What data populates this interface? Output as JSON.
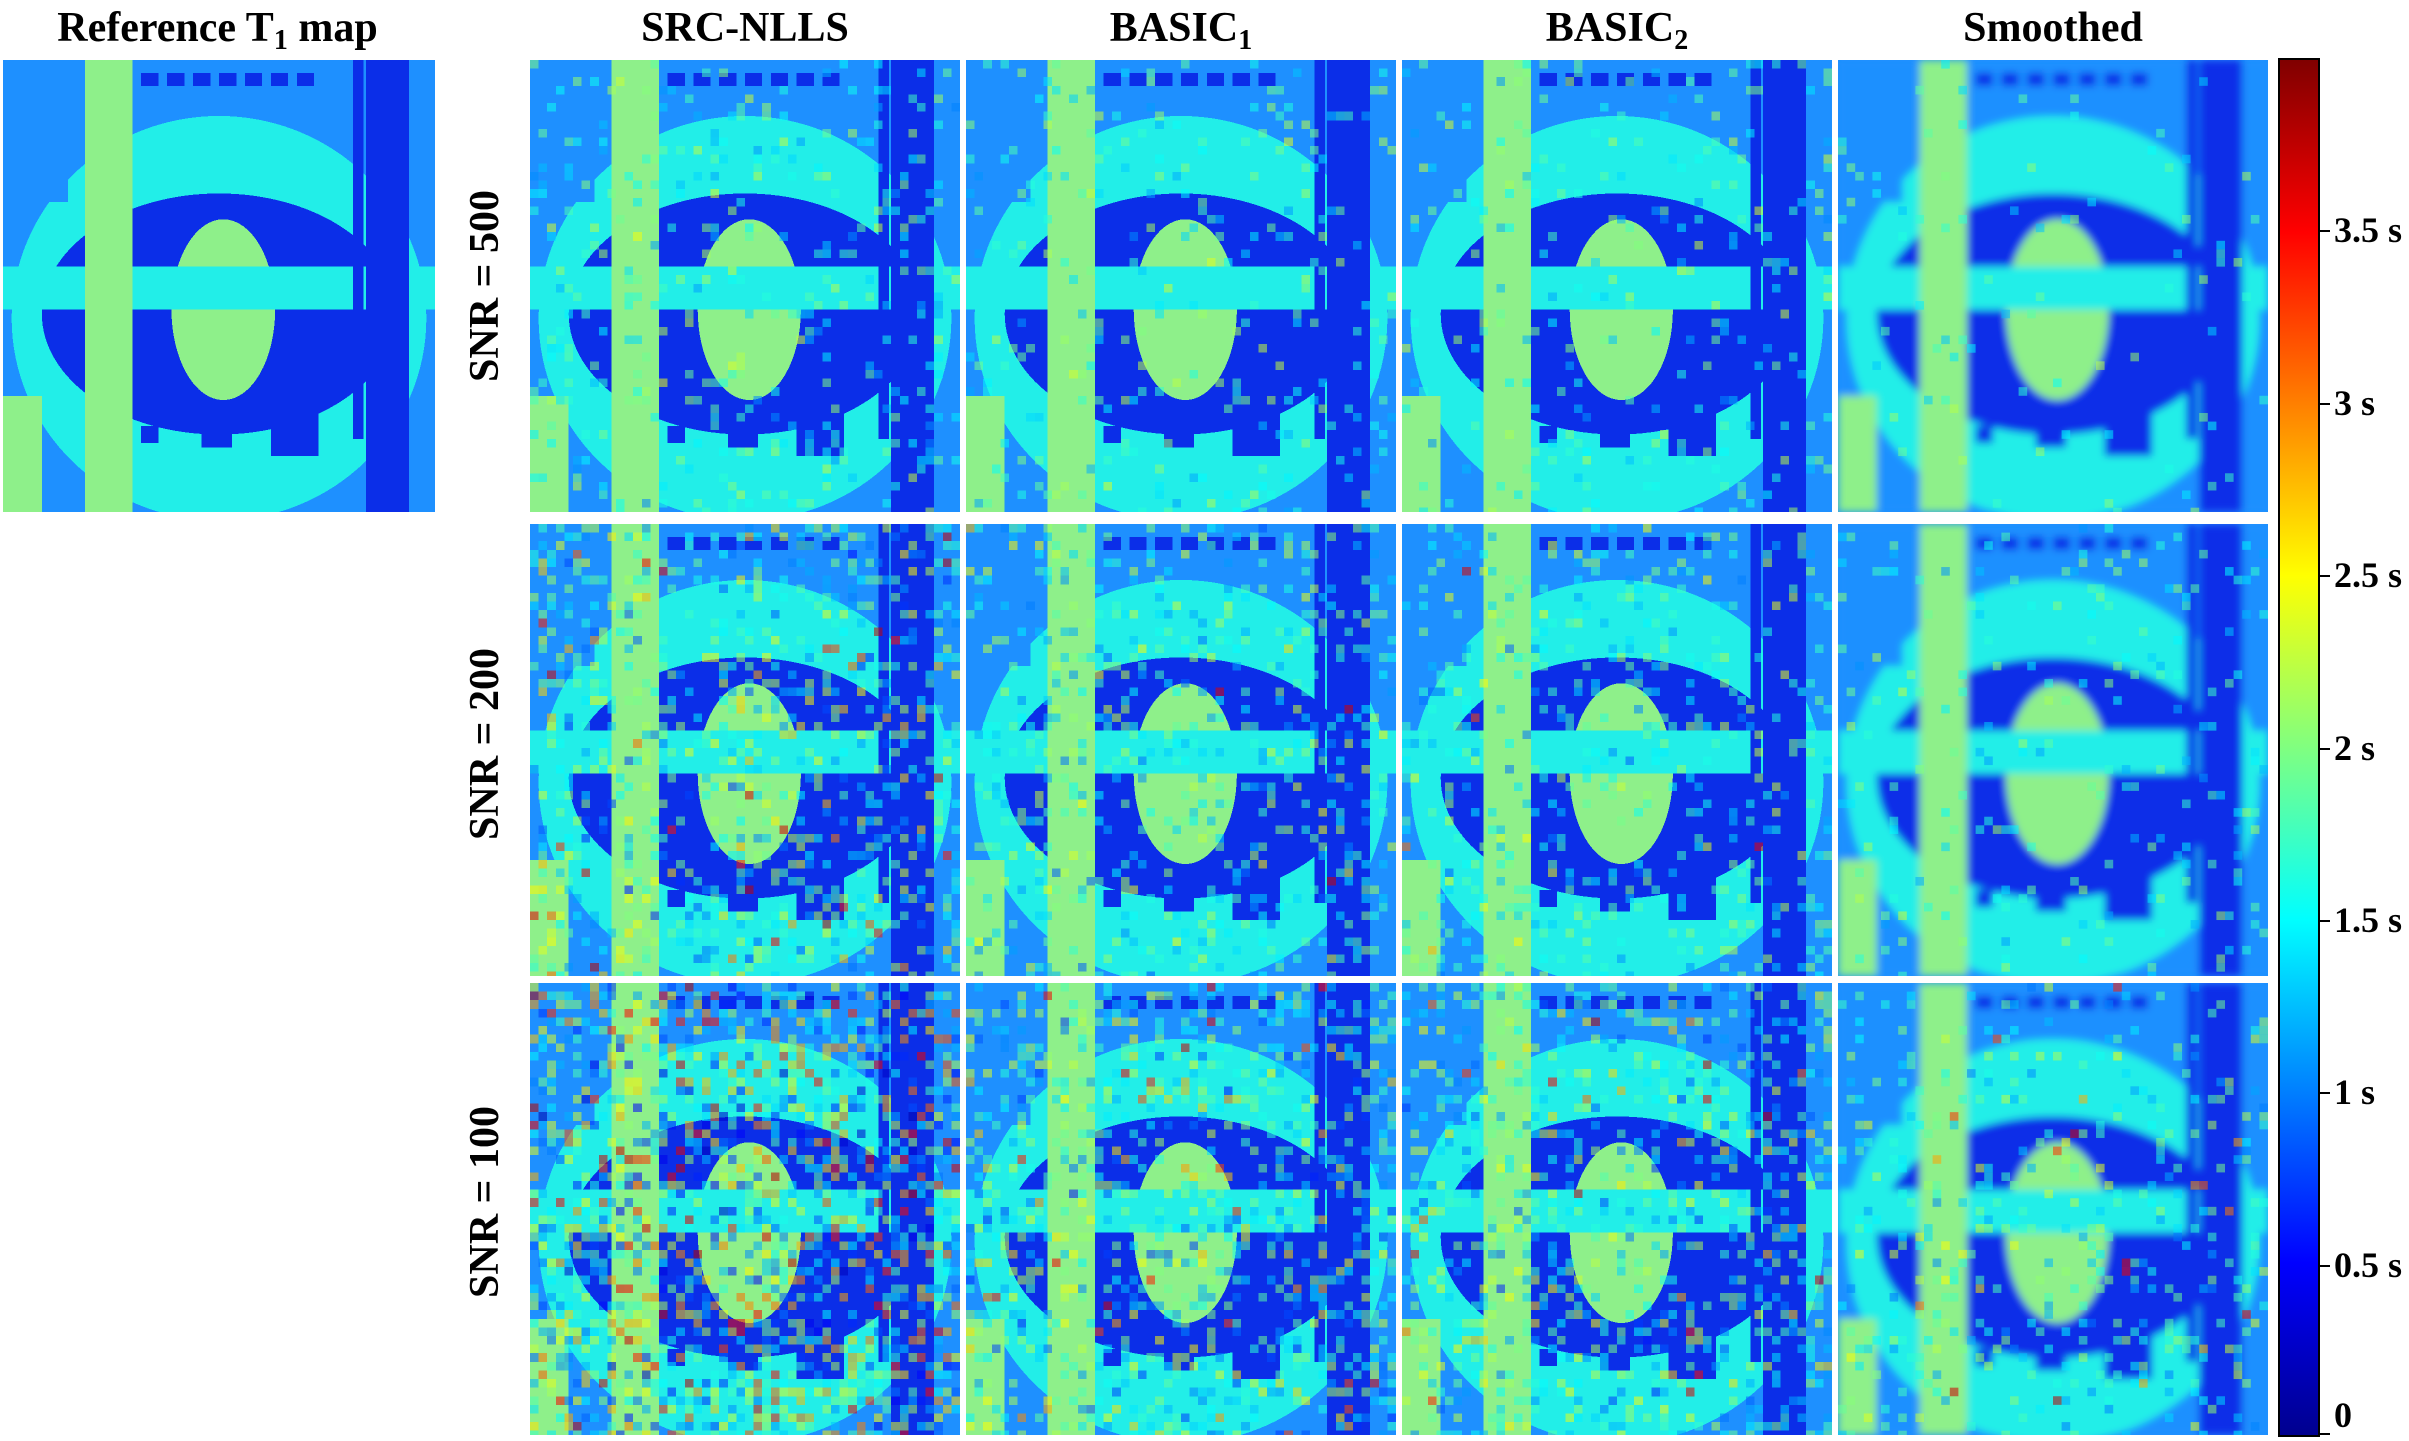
{
  "figure": {
    "reference_title": {
      "text": "Reference T",
      "sub": "1",
      "suffix": " map"
    },
    "columns": [
      {
        "text": "SRC-NLLS",
        "sub": ""
      },
      {
        "text": "BASIC",
        "sub": "1"
      },
      {
        "text": "BASIC",
        "sub": "2"
      },
      {
        "text": "Smoothed",
        "sub": ""
      }
    ],
    "rows": [
      {
        "label": "SNR = 500"
      },
      {
        "label": "SNR = 200"
      },
      {
        "label": "SNR = 100"
      }
    ],
    "colorbar": {
      "colormap": "jet",
      "min": 0,
      "max": 4,
      "ticks": [
        {
          "value": 0,
          "label": "0"
        },
        {
          "value": 0.5,
          "label": "0.5 s"
        },
        {
          "value": 1,
          "label": "1 s"
        },
        {
          "value": 1.5,
          "label": "1.5 s"
        },
        {
          "value": 2,
          "label": "2 s"
        },
        {
          "value": 2.5,
          "label": "2.5 s"
        },
        {
          "value": 3,
          "label": "3 s"
        },
        {
          "value": 3.5,
          "label": "3.5 s"
        }
      ]
    },
    "phantom_colors": {
      "background": "#1e90ff",
      "dark_blue": "#0b2ee8",
      "cyan": "#22eee8",
      "green": "#8ef08a"
    }
  }
}
